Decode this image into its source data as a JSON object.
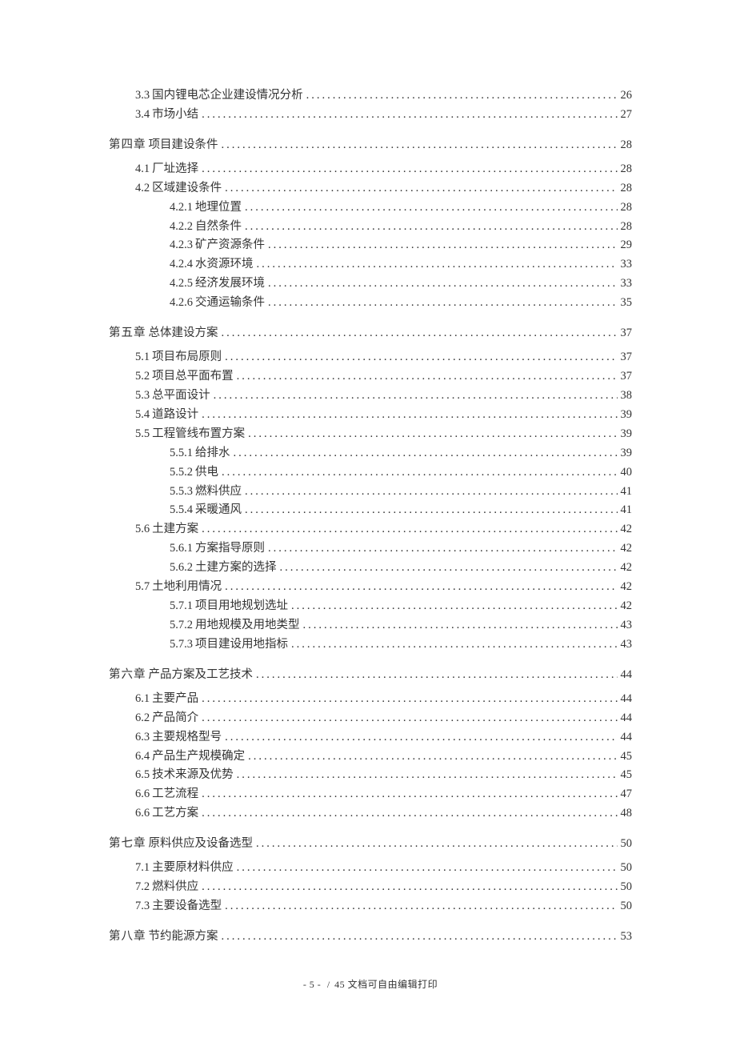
{
  "toc": [
    {
      "level": 2,
      "num": "3.3",
      "title": "国内锂电芯企业建设情况分析",
      "page": "26"
    },
    {
      "level": 2,
      "num": "3.4",
      "title": "市场小结",
      "page": "27"
    },
    {
      "level": 1,
      "num": "第四章",
      "title": "项目建设条件",
      "page": "28"
    },
    {
      "level": 2,
      "num": "4.1",
      "title": "厂址选择",
      "page": "28"
    },
    {
      "level": 2,
      "num": "4.2",
      "title": "区域建设条件",
      "page": "28"
    },
    {
      "level": 3,
      "num": "4.2.1",
      "title": "地理位置",
      "page": "28"
    },
    {
      "level": 3,
      "num": "4.2.2",
      "title": "自然条件",
      "page": "28"
    },
    {
      "level": 3,
      "num": "4.2.3",
      "title": "矿产资源条件",
      "page": "29"
    },
    {
      "level": 3,
      "num": "4.2.4",
      "title": "水资源环境",
      "page": "33"
    },
    {
      "level": 3,
      "num": "4.2.5",
      "title": "经济发展环境",
      "page": "33"
    },
    {
      "level": 3,
      "num": "4.2.6",
      "title": "交通运输条件",
      "page": "35"
    },
    {
      "level": 1,
      "num": "第五章",
      "title": "总体建设方案",
      "page": "37"
    },
    {
      "level": 2,
      "num": "5.1",
      "title": "项目布局原则",
      "page": "37"
    },
    {
      "level": 2,
      "num": "5.2",
      "title": "项目总平面布置",
      "page": "37"
    },
    {
      "level": 2,
      "num": "5.3",
      "title": "总平面设计",
      "page": "38"
    },
    {
      "level": 2,
      "num": "5.4",
      "title": "道路设计",
      "page": "39"
    },
    {
      "level": 2,
      "num": "5.5",
      "title": "工程管线布置方案",
      "page": "39"
    },
    {
      "level": 3,
      "num": "5.5.1",
      "title": "给排水",
      "page": "39"
    },
    {
      "level": 3,
      "num": "5.5.2",
      "title": "供电",
      "page": "40"
    },
    {
      "level": 3,
      "num": "5.5.3",
      "title": "燃料供应",
      "page": "41"
    },
    {
      "level": 3,
      "num": "5.5.4",
      "title": "采暖通风",
      "page": "41"
    },
    {
      "level": 2,
      "num": "5.6",
      "title": "土建方案",
      "page": "42"
    },
    {
      "level": 3,
      "num": "5.6.1",
      "title": "方案指导原则",
      "page": "42"
    },
    {
      "level": 3,
      "num": "5.6.2",
      "title": "土建方案的选择",
      "page": "42"
    },
    {
      "level": 2,
      "num": "5.7",
      "title": "土地利用情况",
      "page": "42"
    },
    {
      "level": 3,
      "num": "5.7.1",
      "title": "项目用地规划选址",
      "page": "42"
    },
    {
      "level": 3,
      "num": "5.7.2",
      "title": "用地规模及用地类型",
      "page": "43"
    },
    {
      "level": 3,
      "num": "5.7.3",
      "title": "项目建设用地指标",
      "page": "43"
    },
    {
      "level": 1,
      "num": "第六章",
      "title": "产品方案及工艺技术",
      "page": "44"
    },
    {
      "level": 2,
      "num": "6.1",
      "title": "主要产品",
      "page": "44"
    },
    {
      "level": 2,
      "num": "6.2",
      "title": "产品简介",
      "page": "44"
    },
    {
      "level": 2,
      "num": "6.3",
      "title": "主要规格型号",
      "page": "44"
    },
    {
      "level": 2,
      "num": "6.4",
      "title": "产品生产规模确定",
      "page": "45"
    },
    {
      "level": 2,
      "num": "6.5",
      "title": "技术来源及优势",
      "page": "45"
    },
    {
      "level": 2,
      "num": "6.6",
      "title": "工艺流程",
      "page": "47"
    },
    {
      "level": 2,
      "num": "6.6",
      "title": "工艺方案",
      "page": "48"
    },
    {
      "level": 1,
      "num": "第七章",
      "title": "原料供应及设备选型",
      "page": "50"
    },
    {
      "level": 2,
      "num": "7.1",
      "title": "主要原材料供应",
      "page": "50"
    },
    {
      "level": 2,
      "num": "7.2",
      "title": "燃料供应",
      "page": "50"
    },
    {
      "level": 2,
      "num": "7.3",
      "title": "主要设备选型",
      "page": "50"
    },
    {
      "level": 1,
      "num": "第八章",
      "title": "节约能源方案",
      "page": "53"
    }
  ],
  "footer": {
    "page_label": "- 5 -",
    "separator": "/",
    "total_label": "45 文档可自由编辑打印"
  }
}
